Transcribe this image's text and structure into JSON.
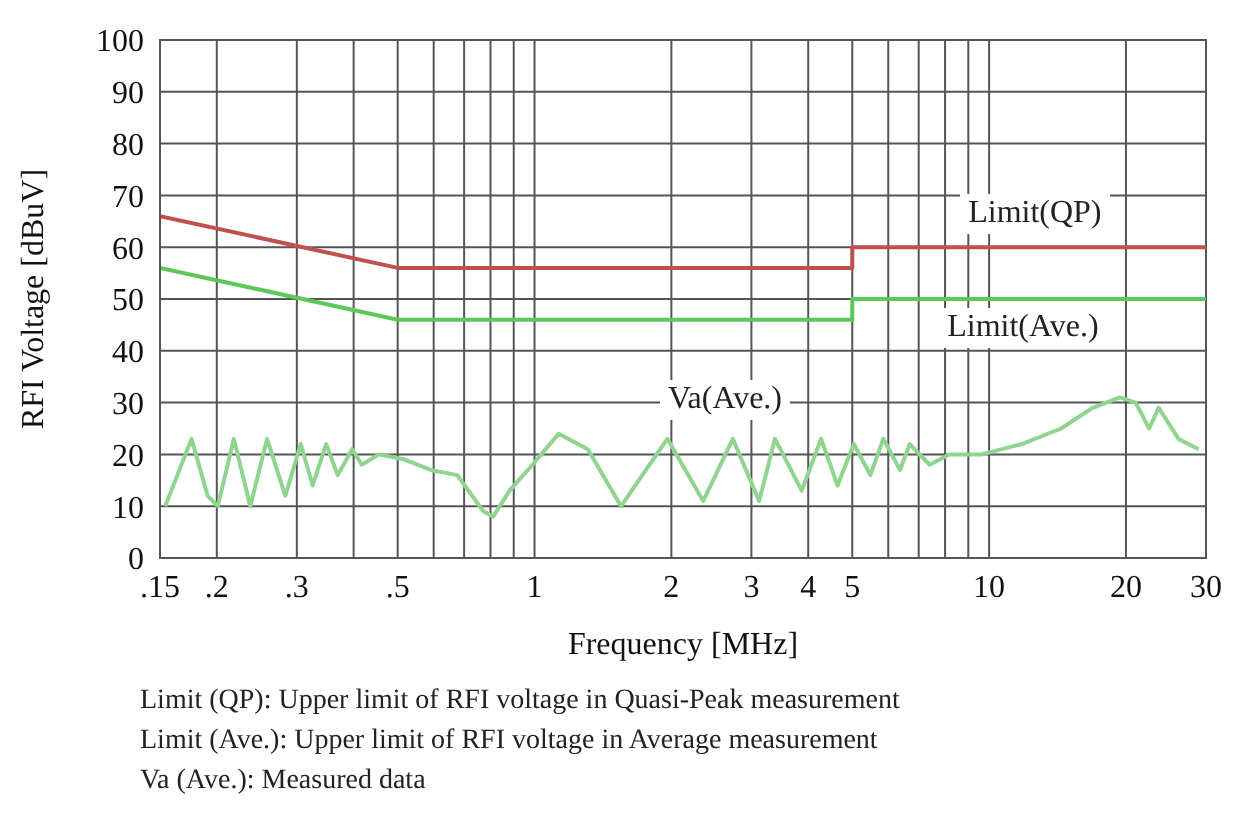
{
  "chart_data": {
    "type": "line",
    "xlabel": "Frequency [MHz]",
    "ylabel": "RFI Voltage [dBuV]",
    "log": "x",
    "grid": true,
    "legend": false,
    "marker": "none",
    "line_style": "solid",
    "xlim": [
      0.15,
      30
    ],
    "ylim": [
      0,
      100
    ],
    "xticks": [
      {
        "value": 0.15,
        "label": ".15"
      },
      {
        "value": 0.2,
        "label": ".2"
      },
      {
        "value": 0.3,
        "label": ".3"
      },
      {
        "value": 0.4,
        "label": null
      },
      {
        "value": 0.5,
        "label": ".5"
      },
      {
        "value": 0.6,
        "label": null
      },
      {
        "value": 0.7,
        "label": null
      },
      {
        "value": 0.8,
        "label": null
      },
      {
        "value": 0.9,
        "label": null
      },
      1,
      2,
      3,
      4,
      5,
      {
        "value": 6,
        "label": null
      },
      {
        "value": 7,
        "label": null
      },
      {
        "value": 8,
        "label": null
      },
      {
        "value": 9,
        "label": null
      },
      10,
      20,
      30
    ],
    "yticks": [
      0,
      10,
      20,
      30,
      40,
      50,
      60,
      70,
      80,
      90,
      100
    ],
    "series": [
      {
        "name": "Limit(QP)",
        "color": "#c0504d",
        "x": [
          0.15,
          0.5,
          5,
          5,
          30
        ],
        "values": [
          66,
          56,
          56,
          60,
          60
        ]
      },
      {
        "name": "Limit(Ave.)",
        "color": "#5cc85c",
        "x": [
          0.15,
          0.5,
          5,
          5,
          30
        ],
        "values": [
          56,
          46,
          46,
          50,
          50
        ]
      },
      {
        "name": "Va(Ave.)",
        "color": "#8fd48f",
        "x": [
          0.154,
          0.176,
          0.191,
          0.201,
          0.218,
          0.237,
          0.258,
          0.283,
          0.306,
          0.325,
          0.348,
          0.369,
          0.397,
          0.417,
          0.454,
          0.518,
          0.591,
          0.676,
          0.772,
          0.811,
          0.881,
          0.99,
          1.13,
          1.31,
          1.55,
          1.96,
          2.35,
          2.73,
          3.12,
          3.38,
          3.87,
          4.27,
          4.64,
          5.04,
          5.48,
          5.85,
          6.37,
          6.69,
          7.4,
          8.17,
          9.64,
          11.8,
          14.4,
          16.9,
          19.4,
          21,
          22.5,
          23.6,
          26.1,
          28.9
        ],
        "values": [
          10,
          23,
          12,
          10,
          23,
          10,
          23,
          12,
          22,
          14,
          22,
          16,
          21,
          18,
          20,
          19,
          17,
          16,
          9,
          8,
          13,
          18,
          24,
          21,
          10,
          23,
          11,
          23,
          11,
          23,
          13,
          23,
          14,
          22,
          16,
          23,
          17,
          22,
          18,
          20,
          20,
          22,
          25,
          29,
          31,
          30,
          25,
          29,
          23,
          21
        ]
      }
    ],
    "annotations": [
      "Limit (QP): Upper limit of RFI voltage in Quasi-Peak measurement",
      "Limit (Ave.): Upper limit of RFI voltage in Average measurement",
      "Va (Ave.): Measured data"
    ]
  }
}
